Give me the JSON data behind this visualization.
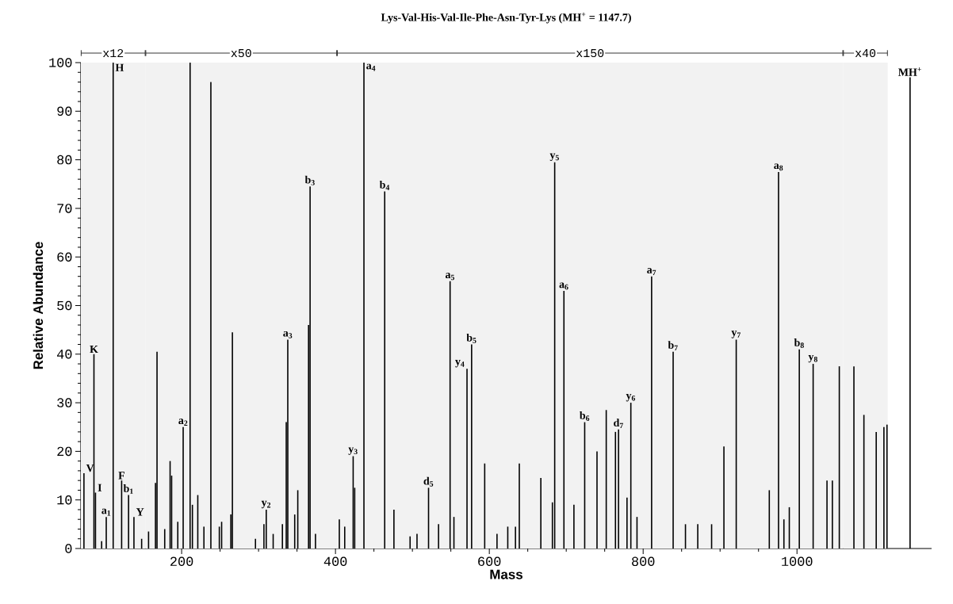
{
  "chart_data": {
    "type": "bar",
    "title": "Lys-Val-His-Val-Ile-Phe-Asn-Tyr-Lys (MH$^{+}$ = 1147.7)",
    "xlabel": "Mass",
    "ylabel": "Relative Abundance",
    "color": "#000000",
    "x": [
      73,
      86,
      88,
      96,
      102,
      111,
      122,
      131,
      138,
      148,
      157,
      166,
      168,
      178,
      185,
      187,
      195,
      202,
      211,
      214,
      221,
      229,
      238,
      249,
      252,
      264,
      266,
      296,
      307,
      310,
      319,
      331,
      336,
      338,
      347,
      351,
      365,
      367,
      374,
      405,
      412,
      423,
      425,
      437,
      464,
      476,
      497,
      506,
      521,
      534,
      549,
      554,
      571,
      577,
      594,
      610,
      624,
      634,
      639,
      667,
      682,
      685,
      697,
      710,
      724,
      740,
      752,
      764,
      768,
      779,
      784,
      792,
      811,
      839,
      855,
      871,
      889,
      905,
      921,
      964,
      976,
      983,
      990,
      1003,
      1021,
      1039,
      1046,
      1055,
      1074,
      1087,
      1103,
      1113,
      1117,
      1147
    ],
    "values": [
      15.5,
      40,
      11.5,
      1.5,
      6.5,
      100,
      14,
      11,
      6.5,
      2,
      3.5,
      13.5,
      40.5,
      4,
      18,
      15,
      5.5,
      25,
      100,
      9,
      11,
      4.5,
      96,
      4.5,
      5.5,
      7,
      44.5,
      2,
      5,
      8,
      3,
      5,
      26,
      43,
      7,
      12,
      46,
      74.5,
      3,
      6,
      4.5,
      19,
      12.5,
      100,
      73.5,
      8,
      2.5,
      3,
      12.5,
      5,
      55,
      6.5,
      37,
      42,
      17.5,
      3,
      4.5,
      4.5,
      17.5,
      14.5,
      9.5,
      79.5,
      53,
      9,
      26,
      20,
      28.5,
      24,
      24.5,
      10.5,
      30,
      6.5,
      56,
      40.5,
      5,
      5,
      5,
      21,
      43,
      12,
      77.5,
      6,
      8.5,
      41,
      38,
      14,
      14,
      37.5,
      37.5,
      27.5,
      24,
      25,
      25.5,
      97
    ],
    "xlim": [
      69,
      1175
    ],
    "ylim": [
      0,
      100
    ],
    "xticks": [
      200,
      400,
      600,
      800,
      1000
    ],
    "yticks": [
      0,
      10,
      20,
      30,
      40,
      50,
      60,
      70,
      80,
      90,
      100
    ],
    "bands": [
      {
        "axis": "x",
        "from": 69,
        "to": 153,
        "label": "x12",
        "color": "#f2f2f2"
      },
      {
        "axis": "x",
        "from": 153,
        "to": 402,
        "label": "x50",
        "color": "#f2f2f2"
      },
      {
        "axis": "x",
        "from": 402,
        "to": 1060,
        "label": "x150",
        "color": "#f2f2f2"
      },
      {
        "axis": "x",
        "from": 1060,
        "to": 1118,
        "label": "x40",
        "color": "#f2f2f2"
      }
    ],
    "annotations": [
      {
        "text": "V",
        "x": 73,
        "y": 15.5
      },
      {
        "text": "K",
        "x": 86,
        "y": 40
      },
      {
        "text": "I",
        "x": 88,
        "y": 11.5
      },
      {
        "text": "a$_{1}$",
        "x": 102,
        "y": 6.5
      },
      {
        "text": "H",
        "x": 111,
        "y": 100
      },
      {
        "text": "F",
        "x": 122,
        "y": 14
      },
      {
        "text": "b$_{1}$",
        "x": 131,
        "y": 11
      },
      {
        "text": "Y",
        "x": 138,
        "y": 6.5
      },
      {
        "text": "a$_{2}$",
        "x": 202,
        "y": 25
      },
      {
        "text": "y$_{2}$",
        "x": 310,
        "y": 8
      },
      {
        "text": "a$_{3}$",
        "x": 338,
        "y": 43
      },
      {
        "text": "b$_{3}$",
        "x": 367,
        "y": 74.5
      },
      {
        "text": "y$_{3}$",
        "x": 423,
        "y": 19
      },
      {
        "text": "a$_{4}$",
        "x": 437,
        "y": 100
      },
      {
        "text": "b$_{4}$",
        "x": 464,
        "y": 73.5
      },
      {
        "text": "d$_{5}$",
        "x": 521,
        "y": 12.5
      },
      {
        "text": "a$_{5}$",
        "x": 549,
        "y": 55
      },
      {
        "text": "y$_{4}$",
        "x": 571,
        "y": 37
      },
      {
        "text": "b$_{5}$",
        "x": 577,
        "y": 42
      },
      {
        "text": "y$_{5}$",
        "x": 685,
        "y": 79.5
      },
      {
        "text": "a$_{6}$",
        "x": 697,
        "y": 53
      },
      {
        "text": "b$_{6}$",
        "x": 724,
        "y": 26
      },
      {
        "text": "d$_{7}$",
        "x": 768,
        "y": 24.5
      },
      {
        "text": "y$_{6}$",
        "x": 784,
        "y": 30
      },
      {
        "text": "a$_{7}$",
        "x": 811,
        "y": 56
      },
      {
        "text": "b$_{7}$",
        "x": 839,
        "y": 40.5
      },
      {
        "text": "y$_{7}$",
        "x": 921,
        "y": 43
      },
      {
        "text": "a$_{8}$",
        "x": 976,
        "y": 77.5
      },
      {
        "text": "b$_{8}$",
        "x": 1003,
        "y": 41
      },
      {
        "text": "y$_{8}$",
        "x": 1021,
        "y": 38
      },
      {
        "text": "MH$^{+}$",
        "x": 1147,
        "y": 97
      }
    ]
  }
}
